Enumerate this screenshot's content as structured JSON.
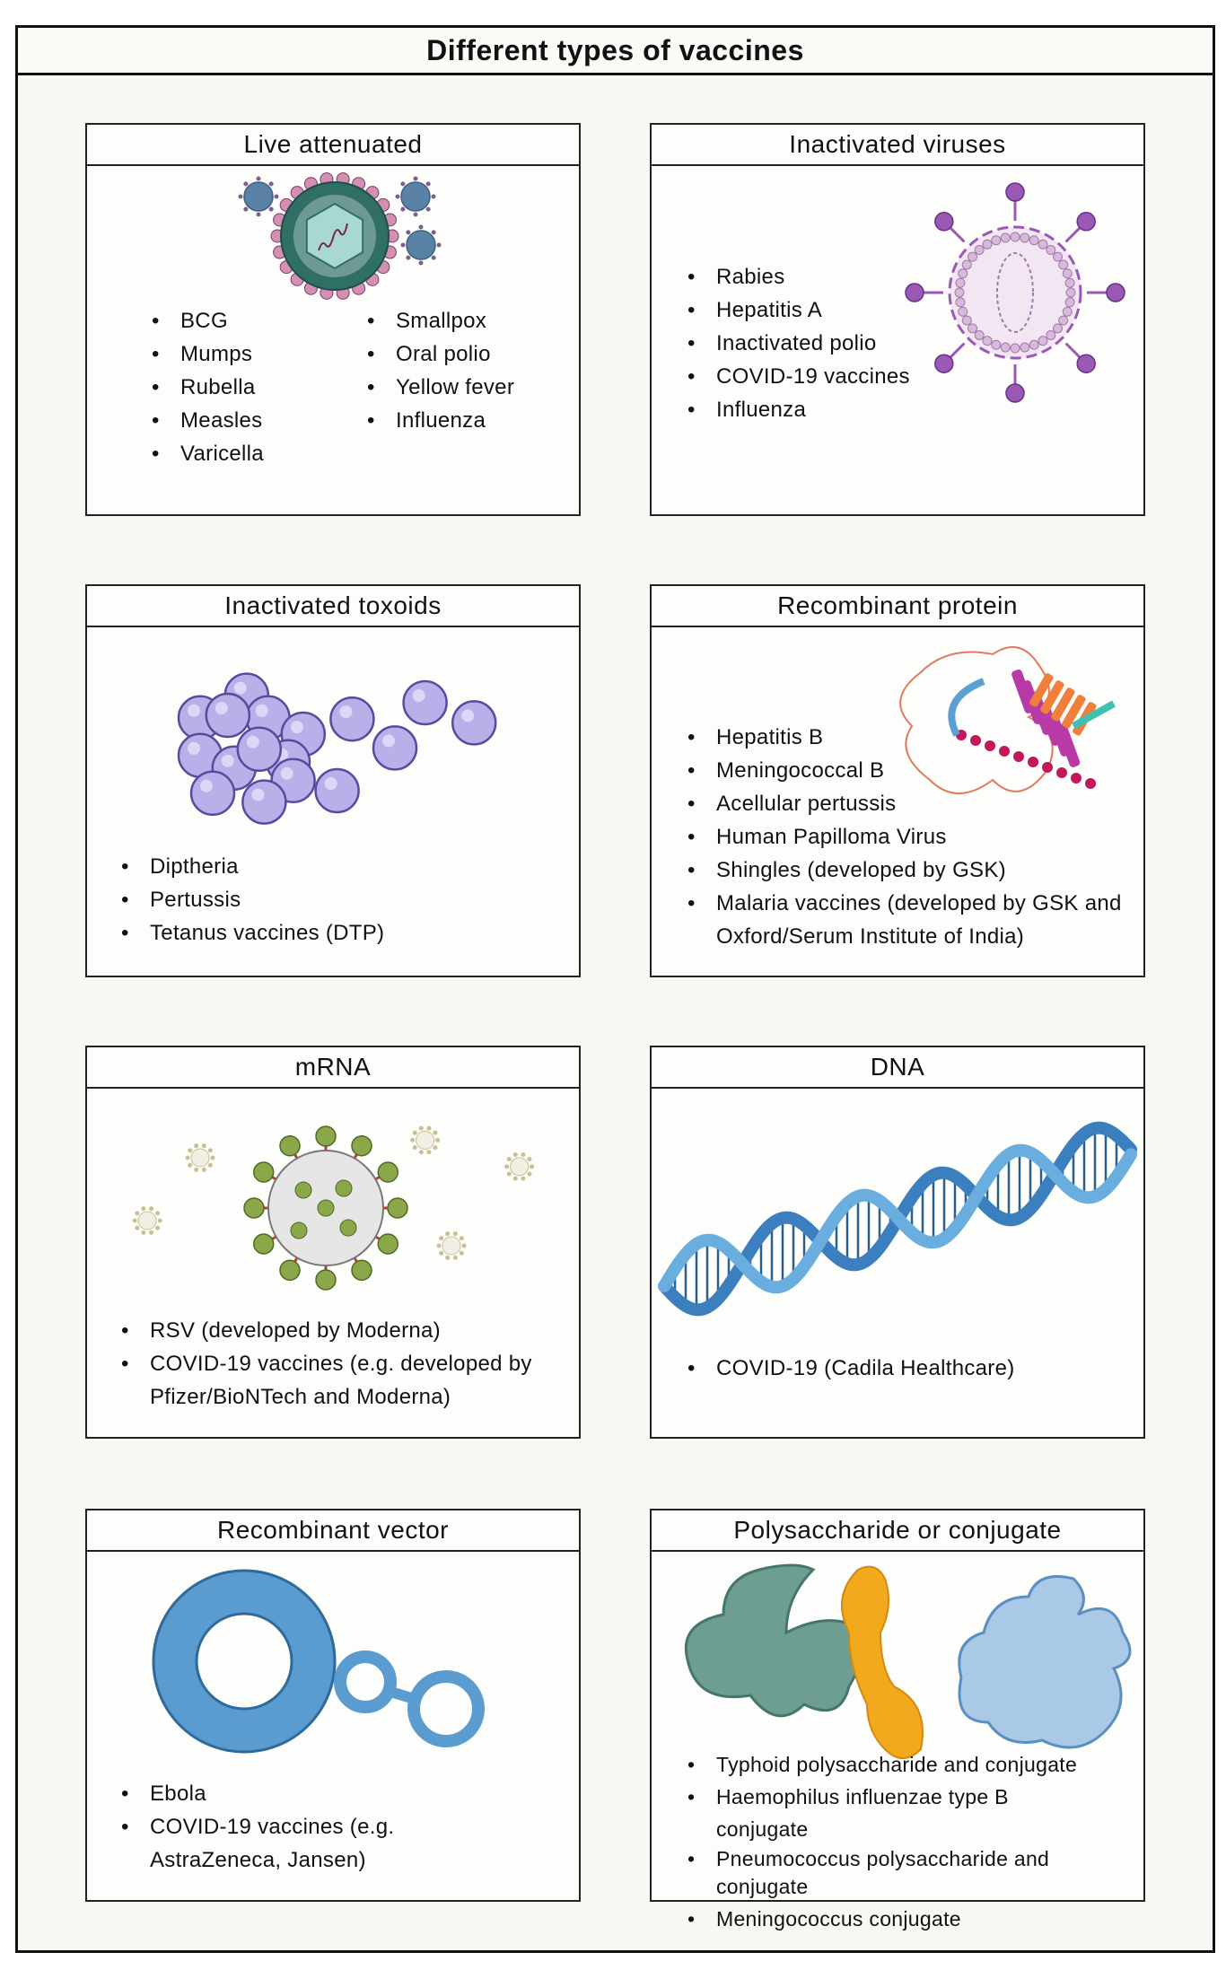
{
  "title": "Different types of vaccines",
  "panels": {
    "live": {
      "title": "Live attenuated",
      "col1": [
        "BCG",
        "Mumps",
        "Rubella",
        "Measles",
        "Varicella"
      ],
      "col2": [
        "Smallpox",
        "Oral polio",
        "Yellow fever",
        "Influenza"
      ]
    },
    "inactivated_viruses": {
      "title": "Inactivated viruses",
      "items": [
        "Rabies",
        "Hepatitis A",
        "Inactivated polio",
        "COVID-19 vaccines",
        "Influenza"
      ]
    },
    "toxoids": {
      "title": "Inactivated toxoids",
      "items": [
        "Diptheria",
        "Pertussis",
        "Tetanus vaccines (DTP)"
      ]
    },
    "recombinant_protein": {
      "title": "Recombinant protein",
      "items": [
        "Hepatitis B",
        "Meningococcal B",
        "Acellular pertussis",
        "Human Papilloma Virus",
        "Shingles (developed by GSK)",
        "Malaria vaccines (developed by GSK and Oxford/Serum Institute of India)"
      ]
    },
    "mrna": {
      "title": "mRNA",
      "items": [
        "RSV (developed by Moderna)",
        "COVID-19 vaccines (e.g. developed by Pfizer/BioNTech and Moderna)"
      ]
    },
    "dna": {
      "title": "DNA",
      "items": [
        "COVID-19 (Cadila Healthcare)"
      ]
    },
    "vector": {
      "title": "Recombinant vector",
      "items": [
        "Ebola",
        "COVID-19 vaccines (e.g. AstraZeneca, Jansen)"
      ]
    },
    "polysaccharide": {
      "title": "Polysaccharide or conjugate",
      "items": [
        "Typhoid polysaccharide and conjugate",
        "Haemophilus influenzae type B conjugate",
        "Pneumococcus polysaccharide and conjugate",
        "Meningococcus conjugate"
      ]
    }
  },
  "colors": {
    "border": "#111111",
    "background": "#f8f7f3",
    "virus_teal": "#3f8a80",
    "virus_pink": "#d58fb5",
    "purple": "#9b59b6",
    "toxoid": "#b9b0ea",
    "dna_blue": "#3b7fbf",
    "mrna_green": "#8aa84a",
    "teal_blob": "#6e9d92",
    "orange_blob": "#f2a91e",
    "blue_blob": "#a9c9e6"
  }
}
